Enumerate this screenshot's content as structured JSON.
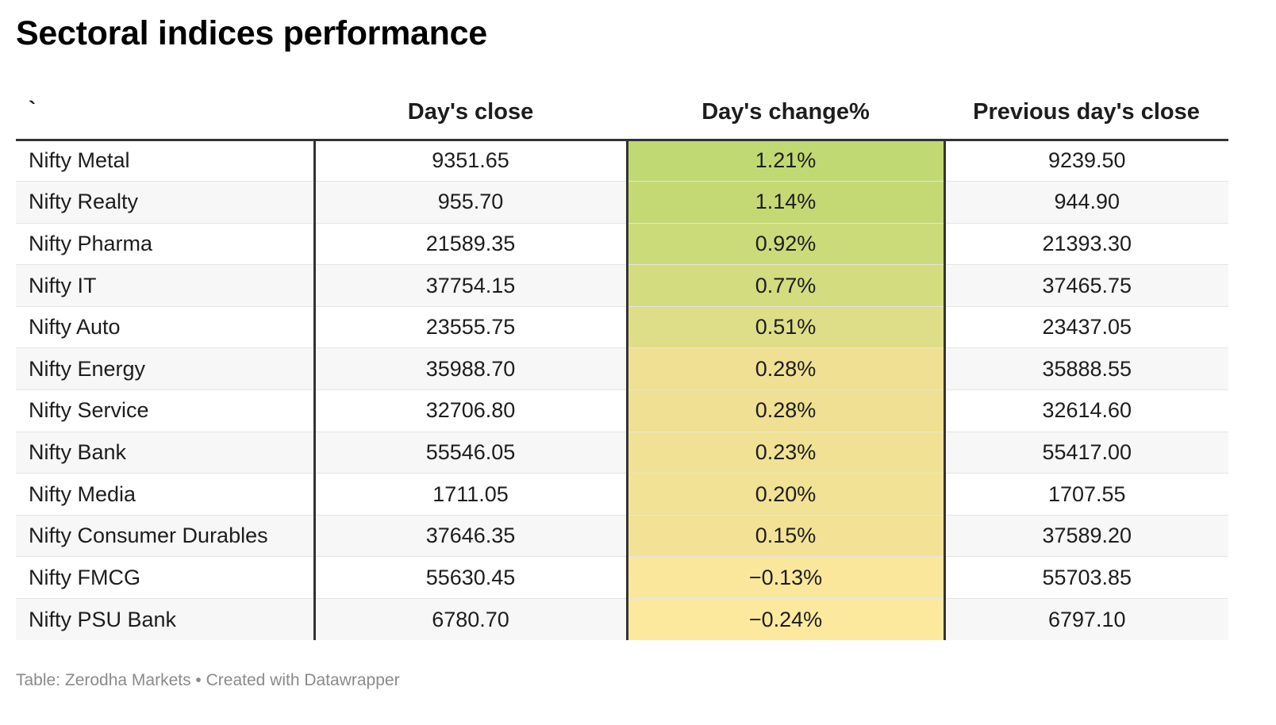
{
  "title": "Sectoral indices performance",
  "source": "Table: Zerodha Markets • Created with Datawrapper",
  "chart_data": {
    "type": "table",
    "columns": [
      "`",
      "Day's close",
      "Day's change%",
      "Previous day's close"
    ],
    "heatmap_column": "Day's change%",
    "heatmap_colors": {
      "high": "#c1d972",
      "mid": "#efe093",
      "low": "#fde99e"
    },
    "rows": [
      {
        "name": "Nifty Metal",
        "close": "9351.65",
        "change": "1.21%",
        "change_value": 1.21,
        "prev_close": "9239.50"
      },
      {
        "name": "Nifty Realty",
        "close": "955.70",
        "change": "1.14%",
        "change_value": 1.14,
        "prev_close": "944.90"
      },
      {
        "name": "Nifty Pharma",
        "close": "21589.35",
        "change": "0.92%",
        "change_value": 0.92,
        "prev_close": "21393.30"
      },
      {
        "name": "Nifty IT",
        "close": "37754.15",
        "change": "0.77%",
        "change_value": 0.77,
        "prev_close": "37465.75"
      },
      {
        "name": "Nifty Auto",
        "close": "23555.75",
        "change": "0.51%",
        "change_value": 0.51,
        "prev_close": "23437.05"
      },
      {
        "name": "Nifty Energy",
        "close": "35988.70",
        "change": "0.28%",
        "change_value": 0.28,
        "prev_close": "35888.55"
      },
      {
        "name": "Nifty Service",
        "close": "32706.80",
        "change": "0.28%",
        "change_value": 0.28,
        "prev_close": "32614.60"
      },
      {
        "name": "Nifty Bank",
        "close": "55546.05",
        "change": "0.23%",
        "change_value": 0.23,
        "prev_close": "55417.00"
      },
      {
        "name": "Nifty Media",
        "close": "1711.05",
        "change": "0.20%",
        "change_value": 0.2,
        "prev_close": "1707.55"
      },
      {
        "name": "Nifty Consumer Durables",
        "close": "37646.35",
        "change": "0.15%",
        "change_value": 0.15,
        "prev_close": "37589.20"
      },
      {
        "name": "Nifty FMCG",
        "close": "55630.45",
        "change": "−0.13%",
        "change_value": -0.13,
        "prev_close": "55703.85"
      },
      {
        "name": "Nifty PSU Bank",
        "close": "6780.70",
        "change": "−0.24%",
        "change_value": -0.24,
        "prev_close": "6797.10"
      }
    ]
  }
}
